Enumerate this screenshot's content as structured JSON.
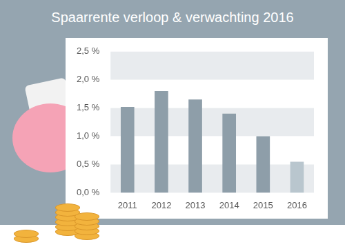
{
  "chart_data": {
    "type": "bar",
    "title": "Spaarrente verloop & verwachting 2016",
    "categories": [
      "2011",
      "2012",
      "2013",
      "2014",
      "2015",
      "2016"
    ],
    "values": [
      1.52,
      1.8,
      1.65,
      1.4,
      1.0,
      0.55
    ],
    "colors": [
      "#8e9ea9",
      "#8e9ea9",
      "#8e9ea9",
      "#8e9ea9",
      "#8e9ea9",
      "#b9c6ce"
    ],
    "ylim": [
      0,
      2.5
    ],
    "yticks": [
      {
        "value": 0,
        "label": "0,0 %"
      },
      {
        "value": 0.5,
        "label": "0,5 %"
      },
      {
        "value": 1,
        "label": "1,0 %"
      },
      {
        "value": 1.5,
        "label": "1,5 %"
      },
      {
        "value": 2,
        "label": "2,0 %"
      },
      {
        "value": 2.5,
        "label": "2,5 %"
      }
    ],
    "grid": true
  }
}
